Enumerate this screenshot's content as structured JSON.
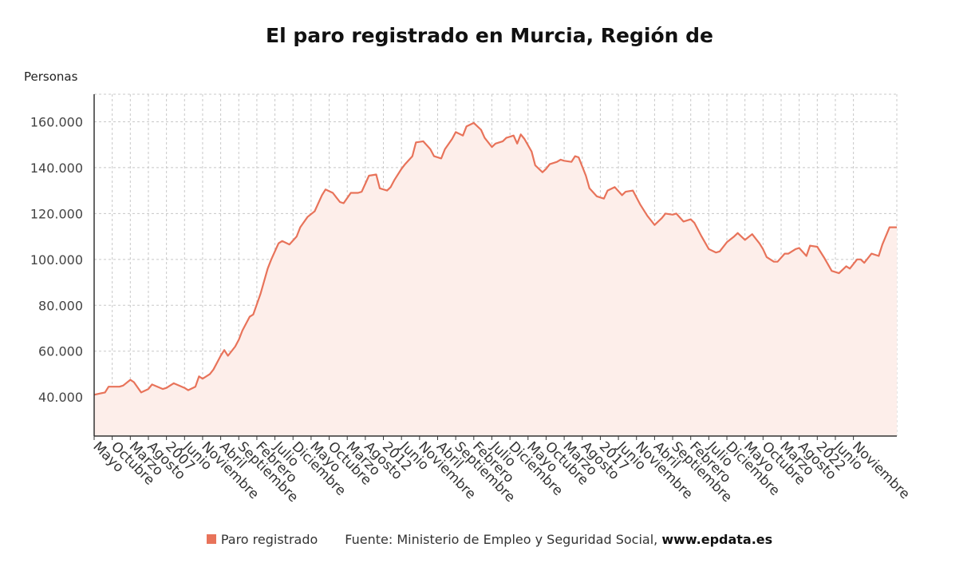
{
  "chart_data": {
    "type": "area",
    "title": "El paro registrado en Murcia, Región de",
    "ylabel": "Personas",
    "xlabel": "",
    "ylim": [
      23000,
      172000
    ],
    "yticks": [
      40000,
      60000,
      80000,
      100000,
      120000,
      140000,
      160000
    ],
    "ytick_labels": [
      "40.000",
      "60.000",
      "80.000",
      "100.000",
      "120.000",
      "140.000",
      "160.000"
    ],
    "x_start": "2005-05",
    "x_end": "2023-11",
    "x_tick_labels": [
      {
        "date": "2005-05",
        "label": "Mayo"
      },
      {
        "date": "2005-10",
        "label": "Octubre"
      },
      {
        "date": "2006-03",
        "label": "Marzo"
      },
      {
        "date": "2006-08",
        "label": "Agosto"
      },
      {
        "date": "2007-01",
        "label": "2007"
      },
      {
        "date": "2007-06",
        "label": "Junio"
      },
      {
        "date": "2007-11",
        "label": "Noviembre"
      },
      {
        "date": "2008-04",
        "label": "Abril"
      },
      {
        "date": "2008-09",
        "label": "Septiembre"
      },
      {
        "date": "2009-02",
        "label": "Febrero"
      },
      {
        "date": "2009-07",
        "label": "Julio"
      },
      {
        "date": "2009-12",
        "label": "Diciembre"
      },
      {
        "date": "2010-05",
        "label": "Mayo"
      },
      {
        "date": "2010-10",
        "label": "Octubre"
      },
      {
        "date": "2011-03",
        "label": "Marzo"
      },
      {
        "date": "2011-08",
        "label": "Agosto"
      },
      {
        "date": "2012-01",
        "label": "2012"
      },
      {
        "date": "2012-06",
        "label": "Junio"
      },
      {
        "date": "2012-11",
        "label": "Noviembre"
      },
      {
        "date": "2013-04",
        "label": "Abril"
      },
      {
        "date": "2013-09",
        "label": "Septiembre"
      },
      {
        "date": "2014-02",
        "label": "Febrero"
      },
      {
        "date": "2014-07",
        "label": "Julio"
      },
      {
        "date": "2014-12",
        "label": "Diciembre"
      },
      {
        "date": "2015-05",
        "label": "Mayo"
      },
      {
        "date": "2015-10",
        "label": "Octubre"
      },
      {
        "date": "2016-03",
        "label": "Marzo"
      },
      {
        "date": "2016-08",
        "label": "Agosto"
      },
      {
        "date": "2017-01",
        "label": "2017"
      },
      {
        "date": "2017-06",
        "label": "Junio"
      },
      {
        "date": "2017-11",
        "label": "Noviembre"
      },
      {
        "date": "2018-04",
        "label": "Abril"
      },
      {
        "date": "2018-09",
        "label": "Septiembre"
      },
      {
        "date": "2019-02",
        "label": "Febrero"
      },
      {
        "date": "2019-07",
        "label": "Julio"
      },
      {
        "date": "2019-12",
        "label": "Diciembre"
      },
      {
        "date": "2020-05",
        "label": "Mayo"
      },
      {
        "date": "2020-10",
        "label": "Octubre"
      },
      {
        "date": "2021-03",
        "label": "Marzo"
      },
      {
        "date": "2021-08",
        "label": "Agosto"
      },
      {
        "date": "2022-01",
        "label": "2022"
      },
      {
        "date": "2022-06",
        "label": "Junio"
      },
      {
        "date": "2022-11",
        "label": "Noviembre"
      }
    ],
    "series": [
      {
        "name": "Paro registrado",
        "color": "#e8735a",
        "fill": "#fdeeea",
        "points": [
          [
            "2005-05",
            41000
          ],
          [
            "2005-08",
            42000
          ],
          [
            "2005-09",
            44500
          ],
          [
            "2005-12",
            44500
          ],
          [
            "2006-01",
            45000
          ],
          [
            "2006-03",
            47500
          ],
          [
            "2006-04",
            46500
          ],
          [
            "2006-06",
            42000
          ],
          [
            "2006-08",
            43500
          ],
          [
            "2006-09",
            45500
          ],
          [
            "2006-12",
            43500
          ],
          [
            "2007-01",
            44000
          ],
          [
            "2007-03",
            46000
          ],
          [
            "2007-06",
            44000
          ],
          [
            "2007-07",
            43000
          ],
          [
            "2007-09",
            44500
          ],
          [
            "2007-10",
            49000
          ],
          [
            "2007-11",
            48000
          ],
          [
            "2008-01",
            50000
          ],
          [
            "2008-02",
            52000
          ],
          [
            "2008-04",
            58000
          ],
          [
            "2008-05",
            60500
          ],
          [
            "2008-06",
            58000
          ],
          [
            "2008-08",
            62000
          ],
          [
            "2008-09",
            65000
          ],
          [
            "2008-10",
            69000
          ],
          [
            "2008-12",
            75000
          ],
          [
            "2009-01",
            76000
          ],
          [
            "2009-03",
            85000
          ],
          [
            "2009-05",
            96000
          ],
          [
            "2009-06",
            100000
          ],
          [
            "2009-08",
            107000
          ],
          [
            "2009-09",
            108000
          ],
          [
            "2009-11",
            106500
          ],
          [
            "2010-01",
            110000
          ],
          [
            "2010-02",
            114000
          ],
          [
            "2010-04",
            118500
          ],
          [
            "2010-06",
            121000
          ],
          [
            "2010-08",
            128000
          ],
          [
            "2010-09",
            130500
          ],
          [
            "2010-11",
            129000
          ],
          [
            "2010-12",
            127000
          ],
          [
            "2011-01",
            125000
          ],
          [
            "2011-02",
            124500
          ],
          [
            "2011-04",
            129000
          ],
          [
            "2011-06",
            129000
          ],
          [
            "2011-07",
            129500
          ],
          [
            "2011-08",
            133000
          ],
          [
            "2011-09",
            136500
          ],
          [
            "2011-11",
            137000
          ],
          [
            "2011-12",
            131000
          ],
          [
            "2012-02",
            130000
          ],
          [
            "2012-03",
            131500
          ],
          [
            "2012-04",
            134500
          ],
          [
            "2012-06",
            139500
          ],
          [
            "2012-07",
            141500
          ],
          [
            "2012-09",
            145000
          ],
          [
            "2012-10",
            151000
          ],
          [
            "2012-12",
            151500
          ],
          [
            "2013-02",
            148000
          ],
          [
            "2013-03",
            145000
          ],
          [
            "2013-05",
            144000
          ],
          [
            "2013-06",
            148000
          ],
          [
            "2013-08",
            152500
          ],
          [
            "2013-09",
            155500
          ],
          [
            "2013-11",
            154000
          ],
          [
            "2013-12",
            158000
          ],
          [
            "2014-02",
            159500
          ],
          [
            "2014-04",
            156500
          ],
          [
            "2014-05",
            153000
          ],
          [
            "2014-07",
            149000
          ],
          [
            "2014-08",
            150500
          ],
          [
            "2014-10",
            151500
          ],
          [
            "2014-11",
            153000
          ],
          [
            "2015-01",
            154000
          ],
          [
            "2015-02",
            150500
          ],
          [
            "2015-03",
            154500
          ],
          [
            "2015-04",
            152500
          ],
          [
            "2015-06",
            147000
          ],
          [
            "2015-07",
            141000
          ],
          [
            "2015-09",
            138000
          ],
          [
            "2015-10",
            139500
          ],
          [
            "2015-11",
            141500
          ],
          [
            "2016-01",
            142500
          ],
          [
            "2016-02",
            143500
          ],
          [
            "2016-03",
            143000
          ],
          [
            "2016-05",
            142500
          ],
          [
            "2016-06",
            145000
          ],
          [
            "2016-07",
            144500
          ],
          [
            "2016-09",
            136500
          ],
          [
            "2016-10",
            131000
          ],
          [
            "2016-12",
            127500
          ],
          [
            "2017-02",
            126500
          ],
          [
            "2017-03",
            130000
          ],
          [
            "2017-05",
            131500
          ],
          [
            "2017-07",
            128000
          ],
          [
            "2017-08",
            129500
          ],
          [
            "2017-10",
            130000
          ],
          [
            "2017-12",
            124000
          ],
          [
            "2018-02",
            119000
          ],
          [
            "2018-04",
            115000
          ],
          [
            "2018-06",
            118000
          ],
          [
            "2018-07",
            120000
          ],
          [
            "2018-09",
            119500
          ],
          [
            "2018-10",
            120000
          ],
          [
            "2018-12",
            116500
          ],
          [
            "2019-02",
            117500
          ],
          [
            "2019-03",
            116000
          ],
          [
            "2019-05",
            110000
          ],
          [
            "2019-07",
            104500
          ],
          [
            "2019-09",
            103000
          ],
          [
            "2019-10",
            103500
          ],
          [
            "2019-12",
            107500
          ],
          [
            "2020-02",
            110000
          ],
          [
            "2020-03",
            111500
          ],
          [
            "2020-05",
            108500
          ],
          [
            "2020-07",
            111000
          ],
          [
            "2020-09",
            107000
          ],
          [
            "2020-10",
            104500
          ],
          [
            "2020-11",
            101000
          ],
          [
            "2021-01",
            99000
          ],
          [
            "2021-02",
            99000
          ],
          [
            "2021-04",
            102500
          ],
          [
            "2021-05",
            102500
          ],
          [
            "2021-07",
            104500
          ],
          [
            "2021-08",
            105000
          ],
          [
            "2021-10",
            101500
          ],
          [
            "2021-11",
            106000
          ],
          [
            "2022-01",
            105500
          ],
          [
            "2022-03",
            100500
          ],
          [
            "2022-05",
            95000
          ],
          [
            "2022-07",
            94000
          ],
          [
            "2022-09",
            97000
          ],
          [
            "2022-10",
            96000
          ],
          [
            "2022-12",
            100000
          ],
          [
            "2023-01",
            100000
          ],
          [
            "2023-02",
            98500
          ],
          [
            "2023-04",
            102500
          ],
          [
            "2023-06",
            101500
          ],
          [
            "2023-07",
            106500
          ],
          [
            "2023-09",
            114000
          ],
          [
            "2023-11",
            114000
          ]
        ]
      }
    ]
  },
  "legend": {
    "series_label": "Paro registrado",
    "source_text": "Fuente: Ministerio de Empleo y Seguridad Social,",
    "source_url": "www.epdata.es"
  }
}
